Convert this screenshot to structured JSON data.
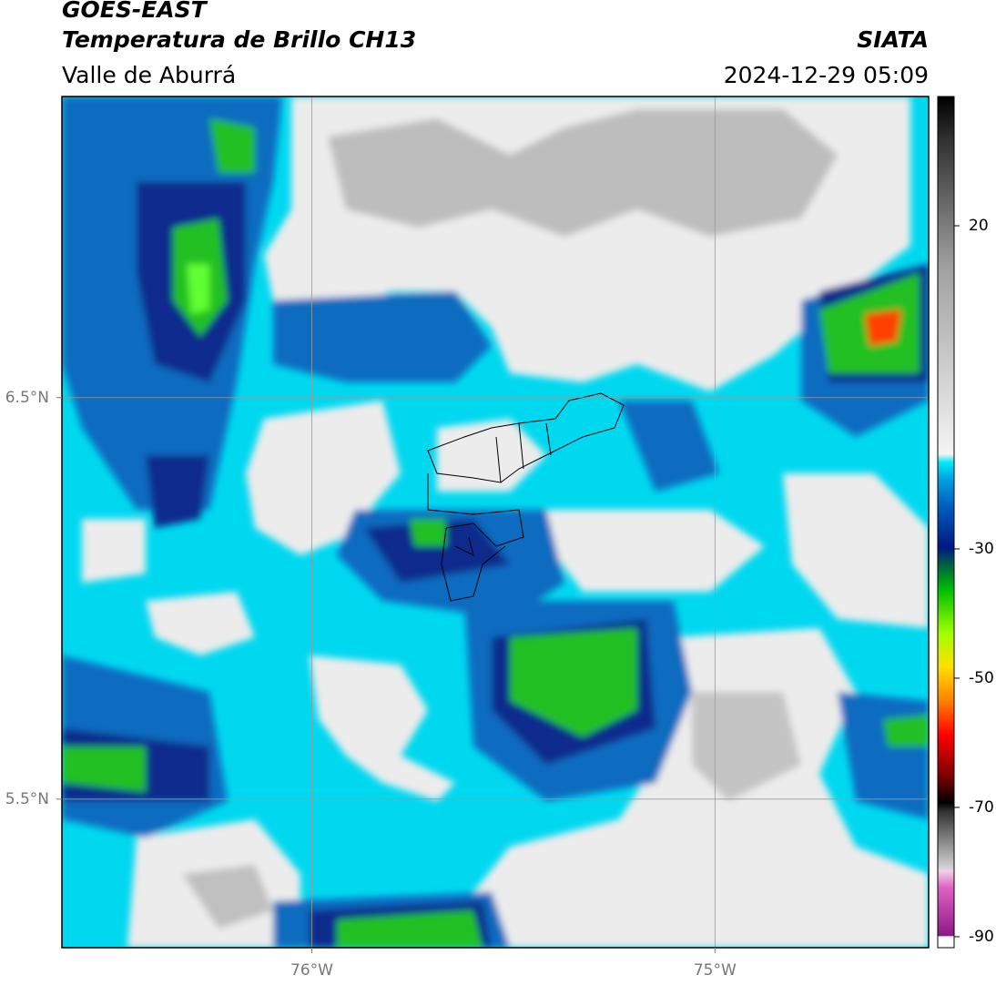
{
  "header": {
    "source": "GOES-EAST",
    "product": "Temperatura de Brillo CH13",
    "region": "Valle de Aburrá",
    "agency": "SIATA",
    "timestamp": "2024-12-29 05:09"
  },
  "map": {
    "xlim": [
      -76.62,
      -74.47
    ],
    "ylim": [
      5.13,
      7.25
    ],
    "xticks": [
      {
        "value": -76,
        "label": "76°W"
      },
      {
        "value": -75,
        "label": "75°W"
      }
    ],
    "yticks": [
      {
        "value": 6.5,
        "label": "6.5°N"
      },
      {
        "value": 5.5,
        "label": "5.5°N"
      }
    ],
    "grid": true
  },
  "colorbar": {
    "lim": [
      -91.7,
      40
    ],
    "ticks": [
      20,
      -30,
      -50,
      -70,
      -90
    ]
  }
}
